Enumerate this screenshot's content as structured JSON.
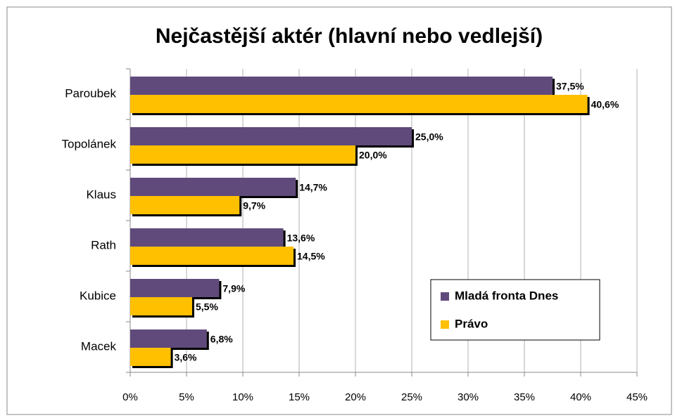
{
  "chart_data": {
    "type": "bar",
    "orientation": "horizontal",
    "title": "Nejčastější aktér (hlavní nebo vedlejší)",
    "categories": [
      "Paroubek",
      "Topolánek",
      "Klaus",
      "Rath",
      "Kubice",
      "Macek"
    ],
    "series": [
      {
        "name": "Mladá fronta Dnes",
        "color": "#604a7b",
        "values": [
          37.5,
          25.0,
          14.7,
          13.6,
          7.9,
          6.8
        ],
        "value_labels": [
          "37,5%",
          "25,0%",
          "14,7%",
          "13,6%",
          "7,9%",
          "6,8%"
        ]
      },
      {
        "name": "Právo",
        "color": "#ffc000",
        "values": [
          40.6,
          20.0,
          9.7,
          14.5,
          5.5,
          3.6
        ],
        "value_labels": [
          "40,6%",
          "20,0%",
          "9,7%",
          "14,5%",
          "5,5%",
          "3,6%"
        ]
      }
    ],
    "xlim": [
      0,
      45
    ],
    "xticks": [
      {
        "value": 0,
        "label": "0%"
      },
      {
        "value": 5,
        "label": "5%"
      },
      {
        "value": 10,
        "label": "10%"
      },
      {
        "value": 15,
        "label": "15%"
      },
      {
        "value": 20,
        "label": "20%"
      },
      {
        "value": 25,
        "label": "25%"
      },
      {
        "value": 30,
        "label": "30%"
      },
      {
        "value": 35,
        "label": "35%"
      },
      {
        "value": 40,
        "label": "40%"
      },
      {
        "value": 45,
        "label": "45%"
      }
    ],
    "grid": true,
    "legend": "lower right"
  }
}
